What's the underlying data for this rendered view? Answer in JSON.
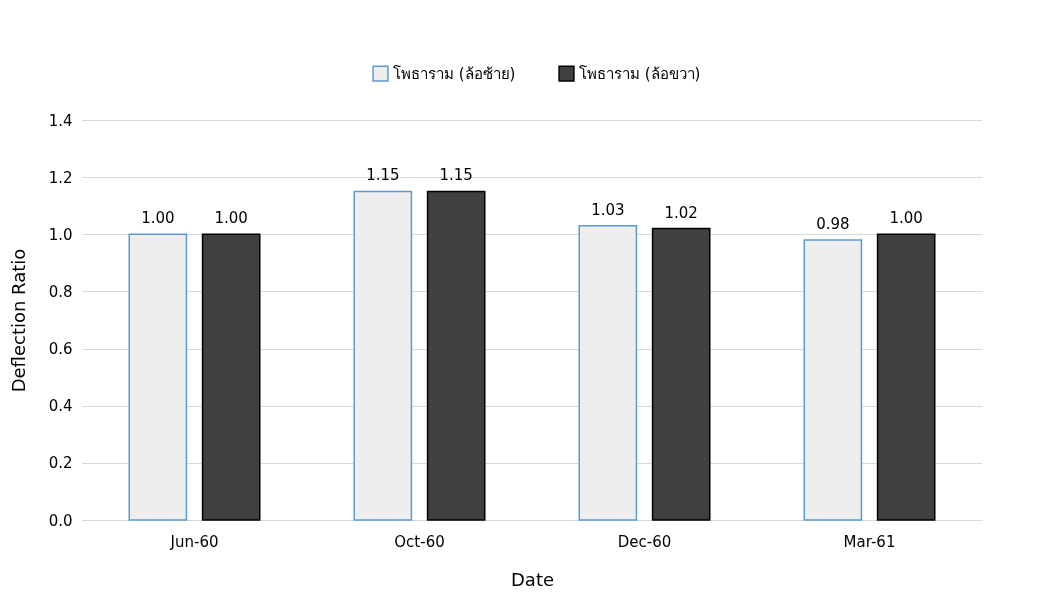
{
  "chart_data": {
    "type": "bar",
    "xlabel": "Date",
    "ylabel": "Deflection Ratio",
    "categories": [
      "Jun-60",
      "Oct-60",
      "Dec-60",
      "Mar-61"
    ],
    "series": [
      {
        "name": "โพธาราม (ล้อซ้าย)",
        "color": "#eeeeee",
        "values": [
          1.0,
          1.15,
          1.03,
          0.98
        ],
        "value_labels": [
          "1.00",
          "1.15",
          "1.03",
          "0.98"
        ]
      },
      {
        "name": "โพธาราม (ล้อขวา)",
        "color": "#404040",
        "values": [
          1.0,
          1.15,
          1.02,
          1.0
        ],
        "value_labels": [
          "1.00",
          "1.15",
          "1.02",
          "1.00"
        ]
      }
    ],
    "ylim": [
      0,
      1.4
    ],
    "yticks": [
      {
        "value": 0,
        "label": "0.0"
      },
      0.2,
      0.4,
      0.6,
      0.8,
      {
        "value": 1,
        "label": "1.0"
      },
      1.2,
      1.4
    ],
    "grid": "y",
    "legend": "top"
  }
}
